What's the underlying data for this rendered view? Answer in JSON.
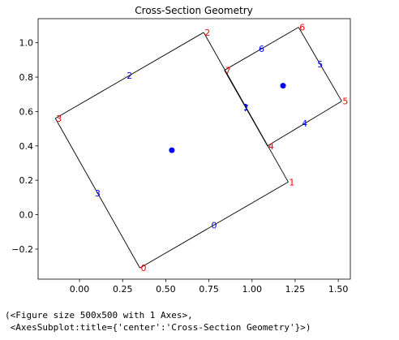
{
  "chart_data": {
    "type": "scatter",
    "title": "Cross-Section Geometry",
    "xlim": [
      -0.24,
      1.57
    ],
    "ylim": [
      -0.375,
      1.14
    ],
    "xticks": [
      "0.00",
      "0.25",
      "0.50",
      "0.75",
      "1.00",
      "1.25",
      "1.50"
    ],
    "yticks": [
      "−0.2",
      "0.0",
      "0.2",
      "0.4",
      "0.6",
      "0.8",
      "1.0"
    ],
    "xtick_values": [
      0,
      0.25,
      0.5,
      0.75,
      1.0,
      1.25,
      1.5
    ],
    "ytick_values": [
      -0.2,
      0,
      0.2,
      0.4,
      0.6,
      0.8,
      1.0
    ],
    "grid": false,
    "vertices": [
      {
        "label": "0",
        "x": 0.35,
        "y": -0.31
      },
      {
        "label": "1",
        "x": 1.21,
        "y": 0.19
      },
      {
        "label": "2",
        "x": 0.72,
        "y": 1.06
      },
      {
        "label": "3",
        "x": -0.14,
        "y": 0.56
      },
      {
        "label": "4",
        "x": 1.09,
        "y": 0.4
      },
      {
        "label": "5",
        "x": 1.52,
        "y": 0.66
      },
      {
        "label": "6",
        "x": 1.27,
        "y": 1.09
      },
      {
        "label": "7",
        "x": 0.84,
        "y": 0.84
      }
    ],
    "edges": [
      {
        "label": "0",
        "from": 0,
        "to": 1
      },
      {
        "label": "1",
        "from": 1,
        "to": 2
      },
      {
        "label": "2",
        "from": 2,
        "to": 3
      },
      {
        "label": "3",
        "from": 3,
        "to": 0
      },
      {
        "label": "4",
        "from": 4,
        "to": 5
      },
      {
        "label": "5",
        "from": 5,
        "to": 6
      },
      {
        "label": "6",
        "from": 6,
        "to": 7
      },
      {
        "label": "7",
        "from": 7,
        "to": 4
      }
    ],
    "centroids": [
      {
        "x": 0.535,
        "y": 0.375
      },
      {
        "x": 1.18,
        "y": 0.75
      }
    ],
    "colors": {
      "edge": "#000000",
      "vertex_label": "#ff0000",
      "edge_label": "#0000ff",
      "centroid": "#0000ff"
    }
  },
  "output_text": "(<Figure size 500x500 with 1 Axes>,\n <AxesSubplot:title={'center':'Cross-Section Geometry'}>)"
}
